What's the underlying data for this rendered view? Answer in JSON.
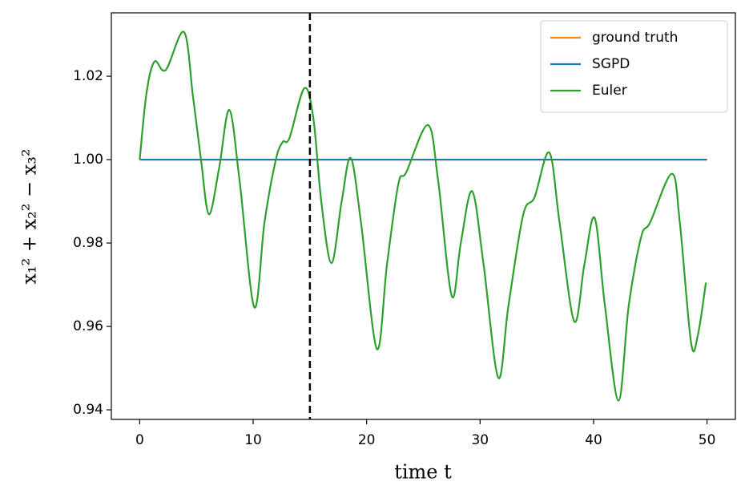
{
  "chart_data": {
    "type": "line",
    "xlabel": "time t",
    "ylabel": "x₁² + x₂² − x₃²",
    "xlim": [
      -2.5,
      52.5
    ],
    "ylim": [
      0.9377,
      1.0352
    ],
    "xticks": [
      0,
      10,
      20,
      30,
      40,
      50
    ],
    "yticks": [
      0.94,
      0.96,
      0.98,
      {
        "value": 1,
        "label": "1.00"
      },
      1.02
    ],
    "vline": 15,
    "legend": "upper right",
    "series": [
      {
        "name": "ground truth",
        "color": "#ff7f0e",
        "x": [
          0,
          50
        ],
        "values": [
          1.0,
          1.0
        ]
      },
      {
        "name": "SGPD",
        "color": "#1f77b4",
        "x": [
          0,
          50
        ],
        "values": [
          1.0,
          1.0
        ]
      },
      {
        "name": "Euler",
        "color": "#2ca02c",
        "x": [
          0,
          0.6,
          1.3,
          2.3,
          3.9,
          4.7,
          5.4,
          6.1,
          7.0,
          7.9,
          8.8,
          10.1,
          11.0,
          12.0,
          12.6,
          13.2,
          14.5,
          15.3,
          16.0,
          16.9,
          17.8,
          18.6,
          19.5,
          20.9,
          21.8,
          22.8,
          23.5,
          25.4,
          26.3,
          27.5,
          28.3,
          29.3,
          30.3,
          31.6,
          32.5,
          33.8,
          34.8,
          36.1,
          37.0,
          38.3,
          39.2,
          40.1,
          41.0,
          42.2,
          43.1,
          44.2,
          45.0,
          46.9,
          47.6,
          48.6,
          49.2,
          49.9
        ],
        "values": [
          1.0,
          1.016,
          1.0235,
          1.0215,
          1.0306,
          1.015,
          1.0,
          0.9869,
          0.998,
          1.0119,
          0.995,
          0.9646,
          0.985,
          1.0,
          1.0042,
          1.0052,
          1.0171,
          1.01,
          0.99,
          0.9752,
          0.99,
          1.0004,
          0.985,
          0.9546,
          0.975,
          0.9942,
          0.997,
          1.0083,
          0.995,
          0.9673,
          0.98,
          0.9924,
          0.975,
          0.9477,
          0.965,
          0.9868,
          0.991,
          1.0017,
          0.985,
          0.9612,
          0.975,
          0.986,
          0.965,
          0.9422,
          0.965,
          0.9815,
          0.985,
          0.9966,
          0.985,
          0.956,
          0.958,
          0.9705
        ]
      }
    ]
  }
}
